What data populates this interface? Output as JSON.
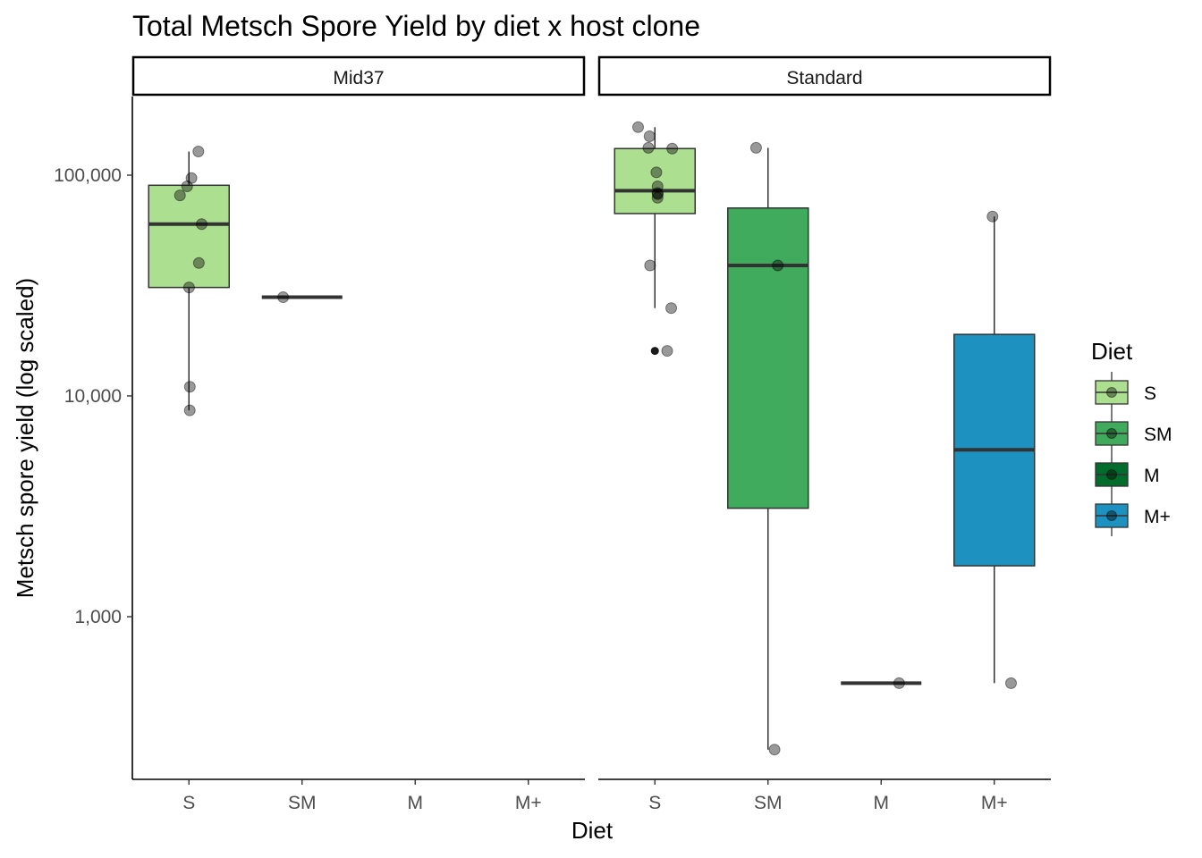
{
  "chart_data": {
    "type": "box",
    "title": "Total Metsch Spore Yield by diet x host clone",
    "xlabel": "Diet",
    "ylabel": "Metsch spore yield (log scaled)",
    "y_scale": "log10",
    "ylim": [
      200,
      230000
    ],
    "y_ticks": [
      1000,
      10000,
      100000
    ],
    "y_tick_labels": [
      "1,000",
      "10,000",
      "100,000"
    ],
    "categories": [
      "S",
      "SM",
      "M",
      "M+"
    ],
    "facets": [
      "Mid37",
      "Standard"
    ],
    "legend": {
      "title": "Diet",
      "position": "right",
      "items": [
        "S",
        "SM",
        "M",
        "M+"
      ]
    },
    "colors": {
      "S": "#addf91",
      "SM": "#41ab5d",
      "M": "#006d2c",
      "M+": "#1d91c0"
    },
    "grid": false,
    "panels": [
      {
        "facet": "Mid37",
        "boxes": [
          {
            "diet": "S",
            "q1": 31000,
            "median": 60000,
            "q3": 90000,
            "whisker_low": 8600,
            "whisker_high": 128000,
            "outliers": []
          },
          {
            "diet": "SM",
            "q1": 28000,
            "median": 28000,
            "q3": 28000,
            "whisker_low": 28000,
            "whisker_high": 28000,
            "outliers": []
          }
        ],
        "points": [
          {
            "diet": "S",
            "y": 128000
          },
          {
            "diet": "S",
            "y": 97000
          },
          {
            "diet": "S",
            "y": 89000
          },
          {
            "diet": "S",
            "y": 81000
          },
          {
            "diet": "S",
            "y": 60000
          },
          {
            "diet": "S",
            "y": 40000
          },
          {
            "diet": "S",
            "y": 31000
          },
          {
            "diet": "S",
            "y": 11000
          },
          {
            "diet": "S",
            "y": 8600
          },
          {
            "diet": "SM",
            "y": 28000
          }
        ]
      },
      {
        "facet": "Standard",
        "boxes": [
          {
            "diet": "S",
            "q1": 67000,
            "median": 85000,
            "q3": 132000,
            "whisker_low": 25000,
            "whisker_high": 165000,
            "outliers": [
              16000
            ]
          },
          {
            "diet": "SM",
            "q1": 3100,
            "median": 39000,
            "q3": 71000,
            "whisker_low": 250,
            "whisker_high": 133000,
            "outliers": []
          },
          {
            "diet": "M",
            "q1": 500,
            "median": 500,
            "q3": 500,
            "whisker_low": 500,
            "whisker_high": 500,
            "outliers": []
          },
          {
            "diet": "M+",
            "q1": 1700,
            "median": 5700,
            "q3": 19000,
            "whisker_low": 500,
            "whisker_high": 65000,
            "outliers": []
          }
        ],
        "points": [
          {
            "diet": "S",
            "y": 165000
          },
          {
            "diet": "S",
            "y": 150000
          },
          {
            "diet": "S",
            "y": 133000
          },
          {
            "diet": "S",
            "y": 132000
          },
          {
            "diet": "S",
            "y": 103000
          },
          {
            "diet": "S",
            "y": 89000
          },
          {
            "diet": "S",
            "y": 83000
          },
          {
            "diet": "S",
            "y": 82000
          },
          {
            "diet": "S",
            "y": 79000
          },
          {
            "diet": "S",
            "y": 39000
          },
          {
            "diet": "S",
            "y": 25000
          },
          {
            "diet": "S",
            "y": 16000
          },
          {
            "diet": "SM",
            "y": 133000
          },
          {
            "diet": "SM",
            "y": 39000
          },
          {
            "diet": "SM",
            "y": 250
          },
          {
            "diet": "M",
            "y": 500
          },
          {
            "diet": "M+",
            "y": 65000
          },
          {
            "diet": "M+",
            "y": 500
          }
        ]
      }
    ]
  }
}
